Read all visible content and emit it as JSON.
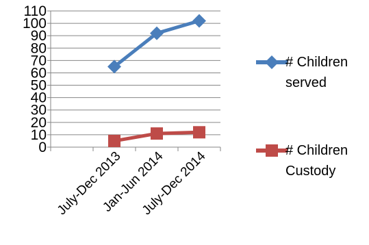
{
  "chart_data": {
    "type": "line",
    "categories": [
      "",
      "July-Dec 2013",
      "Jan-Jun 2014",
      "July-Dec 2014"
    ],
    "series": [
      {
        "name": "# Children served",
        "name_line1": "# Children",
        "name_line2": "served",
        "values": [
          null,
          65,
          92,
          102
        ],
        "color": "#4a7ebb",
        "marker": "diamond"
      },
      {
        "name": "# Children Custody",
        "name_line1": "# Children",
        "name_line2": "Custody",
        "values": [
          null,
          5,
          11,
          12
        ],
        "color": "#be4b48",
        "marker": "square"
      }
    ],
    "yticks": [
      "0",
      "10",
      "20",
      "30",
      "40",
      "50",
      "60",
      "70",
      "80",
      "90",
      "100",
      "110"
    ],
    "ylim": [
      0,
      110
    ],
    "grid": true,
    "legend_position": "right"
  }
}
